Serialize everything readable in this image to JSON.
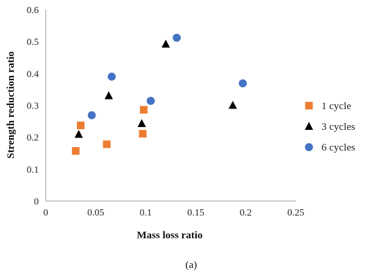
{
  "chart_data": {
    "type": "scatter",
    "title": "",
    "xlabel": "Mass loss ratio",
    "ylabel": "Strength reduction ratio",
    "xlim": [
      0,
      0.25
    ],
    "ylim": [
      0,
      0.6
    ],
    "x_ticks": [
      "0",
      "0.05",
      "0.1",
      "0.15",
      "0.2",
      "0.25"
    ],
    "y_ticks": [
      "0",
      "0.1",
      "0.2",
      "0.3",
      "0.4",
      "0.5",
      "0.6"
    ],
    "x_tick_values": [
      0,
      0.05,
      0.1,
      0.15,
      0.2,
      0.25
    ],
    "y_tick_values": [
      0,
      0.1,
      0.2,
      0.3,
      0.4,
      0.5,
      0.6
    ],
    "grid": false,
    "legend_position": "right",
    "caption": "(a)",
    "series": [
      {
        "name": "1 cycle",
        "marker": "square",
        "color": "#ED7D31",
        "points": [
          {
            "x": 0.03,
            "y": 0.157
          },
          {
            "x": 0.035,
            "y": 0.237
          },
          {
            "x": 0.061,
            "y": 0.178
          },
          {
            "x": 0.097,
            "y": 0.211
          },
          {
            "x": 0.098,
            "y": 0.286
          }
        ]
      },
      {
        "name": "3 cycles",
        "marker": "triangle",
        "color": "#000000",
        "points": [
          {
            "x": 0.033,
            "y": 0.209
          },
          {
            "x": 0.063,
            "y": 0.33
          },
          {
            "x": 0.096,
            "y": 0.243
          },
          {
            "x": 0.12,
            "y": 0.492
          },
          {
            "x": 0.187,
            "y": 0.3
          }
        ]
      },
      {
        "name": "6 cycles",
        "marker": "circle",
        "color": "#4472C4",
        "points": [
          {
            "x": 0.046,
            "y": 0.269
          },
          {
            "x": 0.066,
            "y": 0.39
          },
          {
            "x": 0.105,
            "y": 0.314
          },
          {
            "x": 0.131,
            "y": 0.512
          },
          {
            "x": 0.197,
            "y": 0.369
          }
        ]
      }
    ]
  }
}
